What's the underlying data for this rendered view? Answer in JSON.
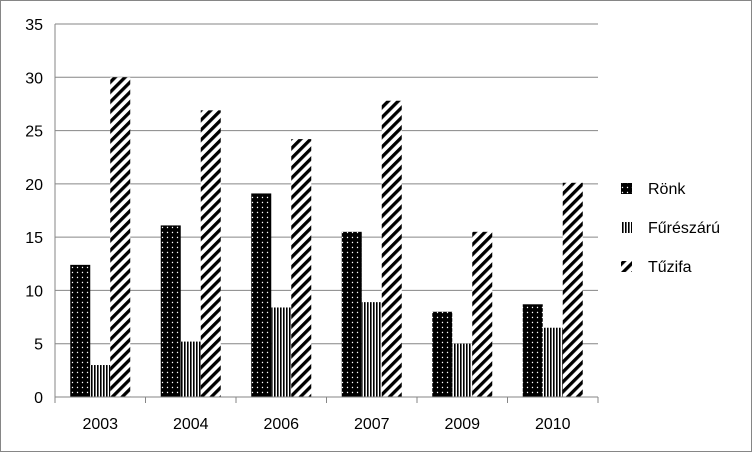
{
  "chart_data": {
    "type": "bar",
    "title": "",
    "xlabel": "",
    "ylabel": "",
    "categories": [
      "2003",
      "2004",
      "2006",
      "2007",
      "2009",
      "2010"
    ],
    "ylim": [
      0,
      35
    ],
    "yticks": [
      0,
      5,
      10,
      15,
      20,
      25,
      30,
      35
    ],
    "grid": true,
    "legend_position": "right",
    "series": [
      {
        "name": "Rönk",
        "pattern": "dotted-black",
        "values": [
          12.4,
          16.1,
          19.1,
          15.5,
          8.0,
          8.7
        ]
      },
      {
        "name": "Fűrészárú",
        "pattern": "vertical-stripes",
        "values": [
          3.0,
          5.2,
          8.4,
          8.9,
          5.0,
          6.5
        ]
      },
      {
        "name": "Tűzifa",
        "pattern": "diagonal-stripes",
        "values": [
          30.0,
          26.9,
          24.2,
          27.8,
          15.5,
          20.1
        ]
      }
    ],
    "colors": {
      "ink": "#000000",
      "grid": "#868686",
      "paper": "#ffffff"
    }
  }
}
